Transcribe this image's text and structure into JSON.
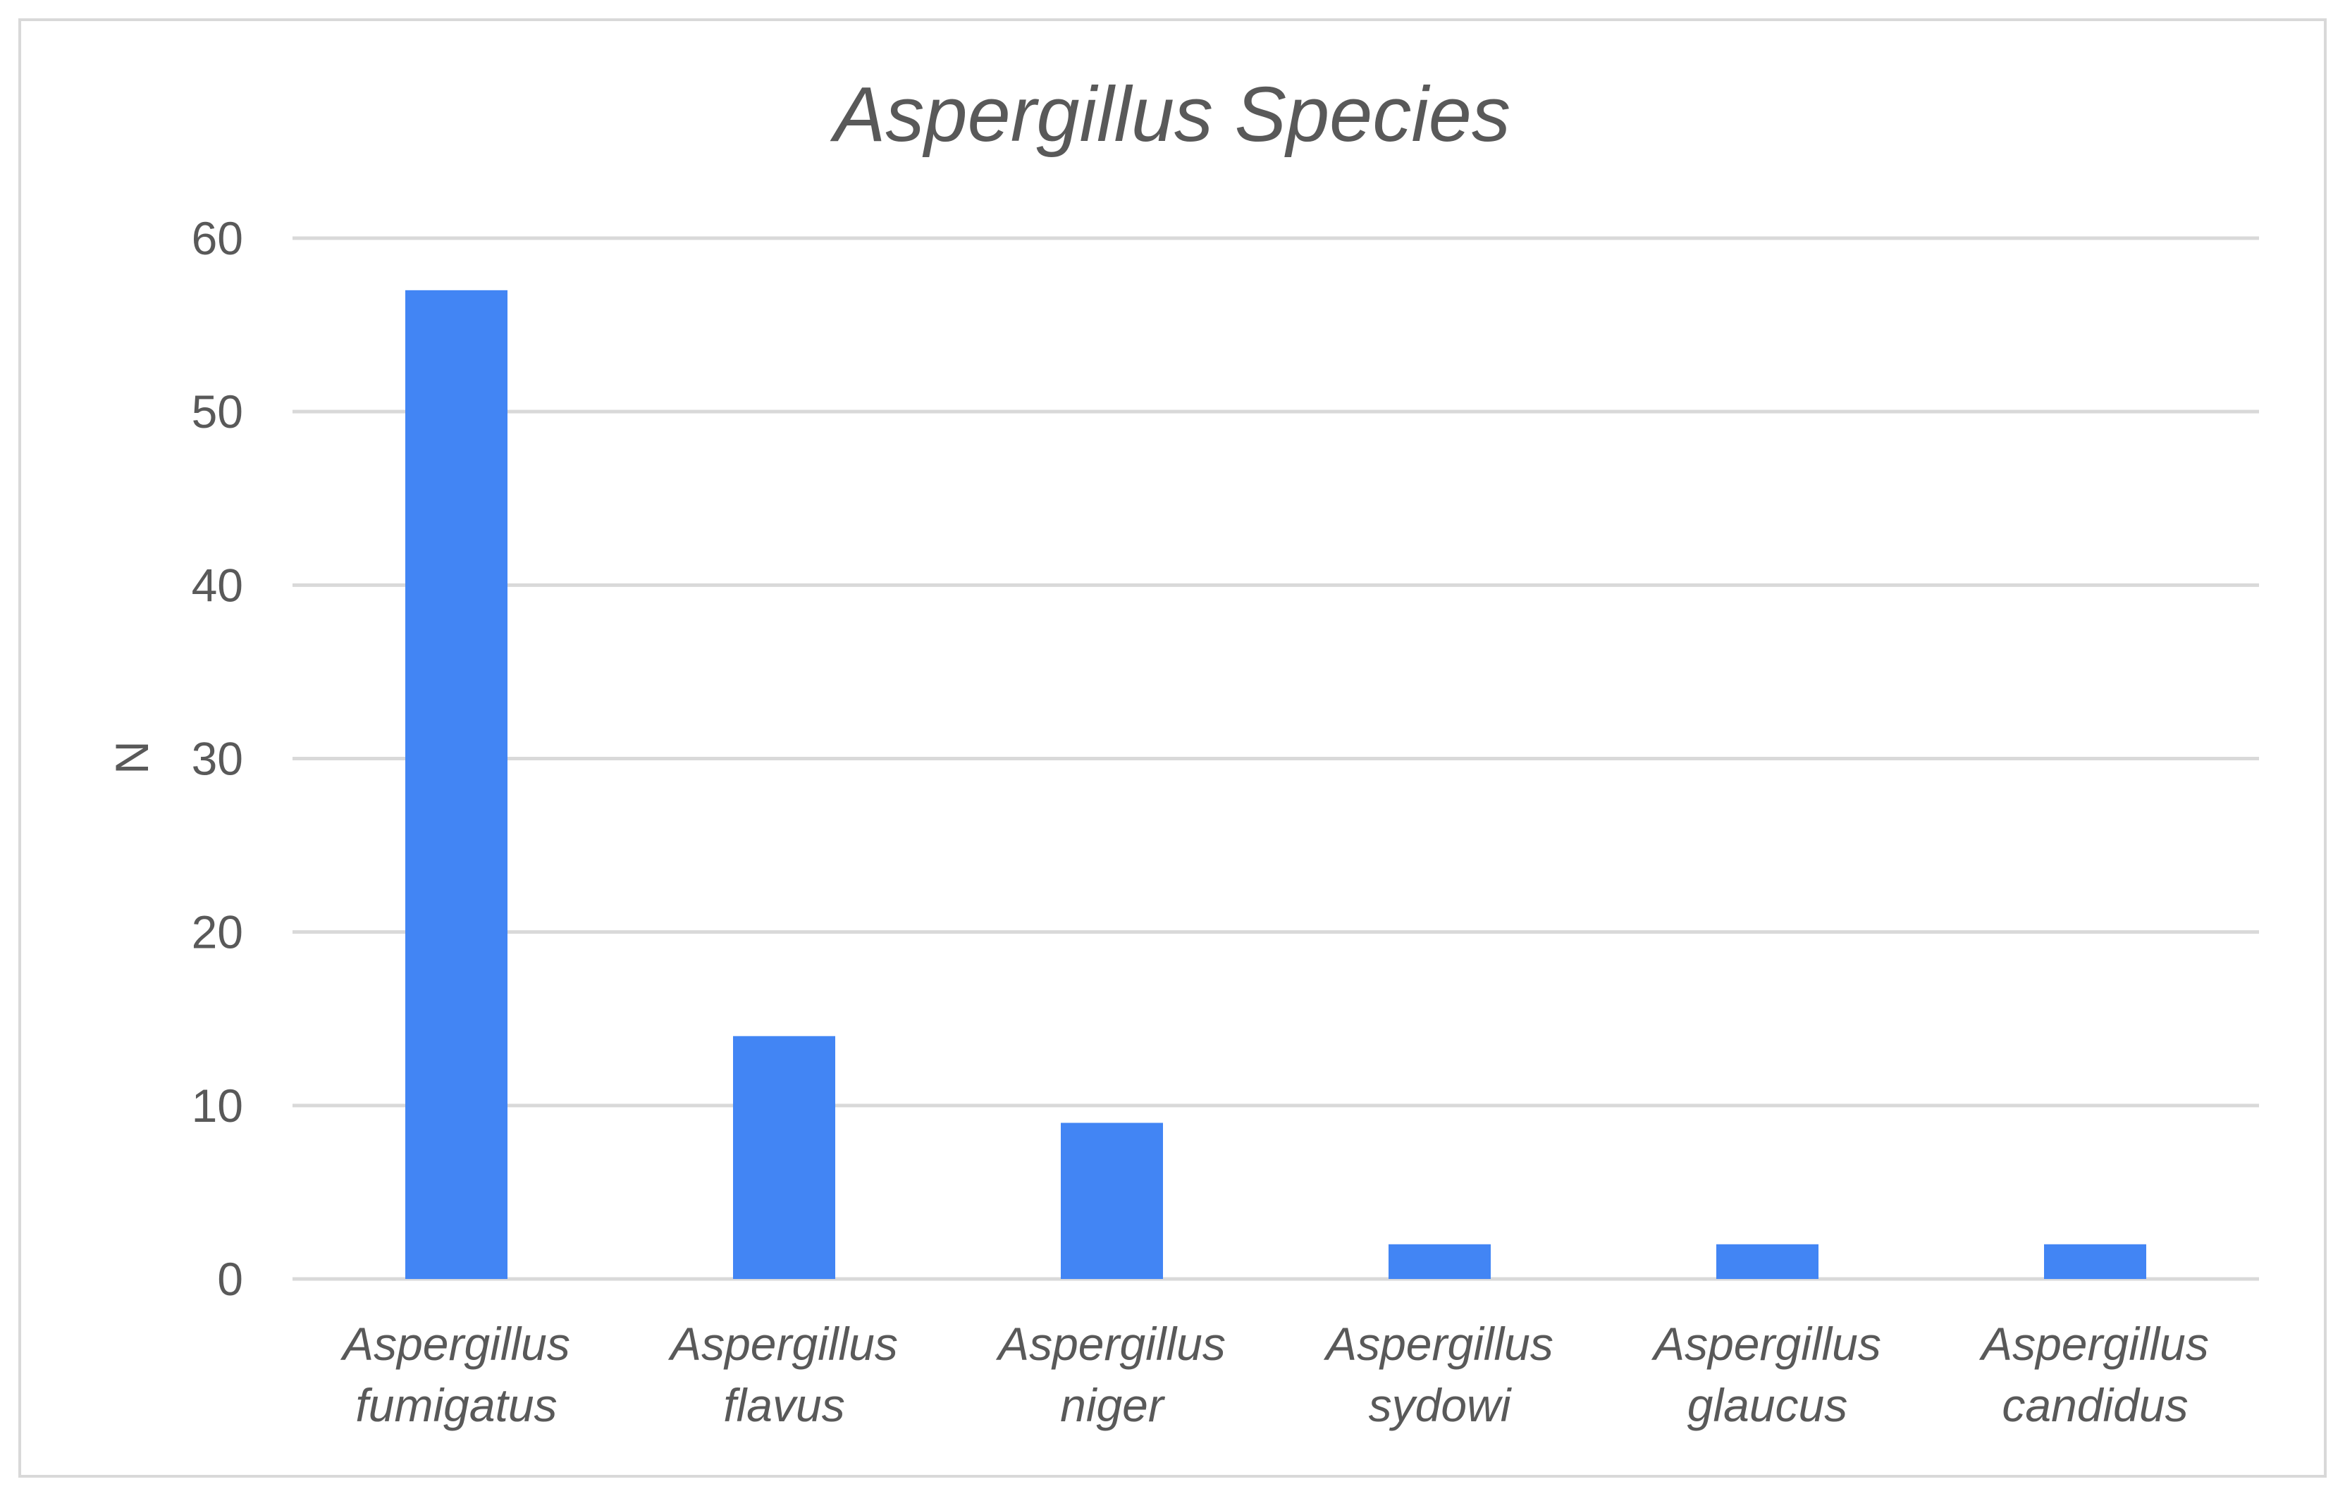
{
  "chart_data": {
    "type": "bar",
    "title": "Aspergillus Species",
    "ylabel": "N",
    "xlabel": "",
    "ylim": [
      0,
      60
    ],
    "yticks": [
      "0",
      "10",
      "20",
      "30",
      "40",
      "50",
      "60"
    ],
    "categories": [
      [
        "Aspergillus",
        "fumigatus"
      ],
      [
        "Aspergillus",
        "flavus"
      ],
      [
        "Aspergillus",
        "niger"
      ],
      [
        "Aspergillus",
        "sydowi"
      ],
      [
        "Aspergillus",
        "glaucus"
      ],
      [
        "Aspergillus",
        "candidus"
      ]
    ],
    "values": [
      57,
      14,
      9,
      2,
      2,
      2
    ],
    "bar_color": "#4285f4",
    "grid": true,
    "legend": "none"
  }
}
